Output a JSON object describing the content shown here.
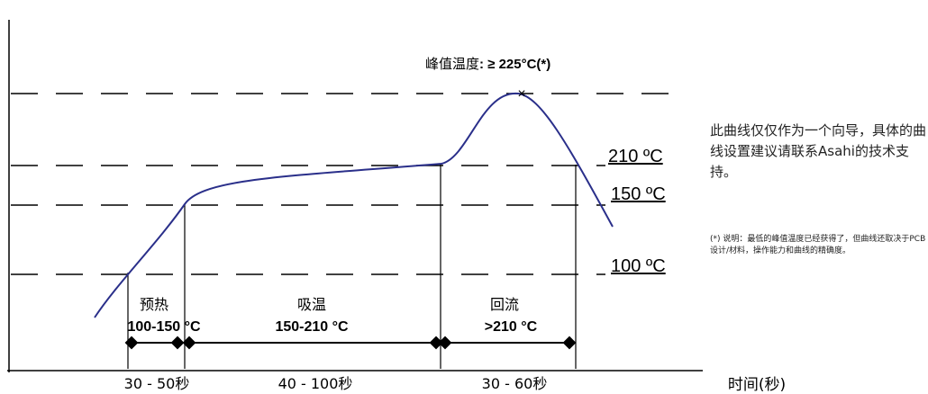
{
  "peak": {
    "label": "峰值温度",
    "value": ": ≥ 225°C(*)",
    "marker": "×"
  },
  "temps": {
    "t210": "210 ºC",
    "t150": "150 ºC",
    "t100": "100 ºC"
  },
  "zones": {
    "preheat": {
      "name": "预热",
      "range": "100-150 °C",
      "time": "30 - 50秒"
    },
    "soak": {
      "name": "吸温",
      "range": "150-210 °C",
      "time": "40 - 100秒"
    },
    "reflow": {
      "name": "回流",
      "range": ">210 °C",
      "time": "30 - 60秒"
    }
  },
  "xaxis_label": "时间(秒)",
  "note": "此曲线仅仅作为一个向导，具体的曲线设置建议请联系Asahi的技术支持。",
  "footnote": "(*) 说明：最低的峰值温度已经获得了，但曲线还取决于PCB设计/材料，操作能力和曲线的精确度。",
  "colors": {
    "curve": "#2a2f8a",
    "lines": "#000000"
  }
}
